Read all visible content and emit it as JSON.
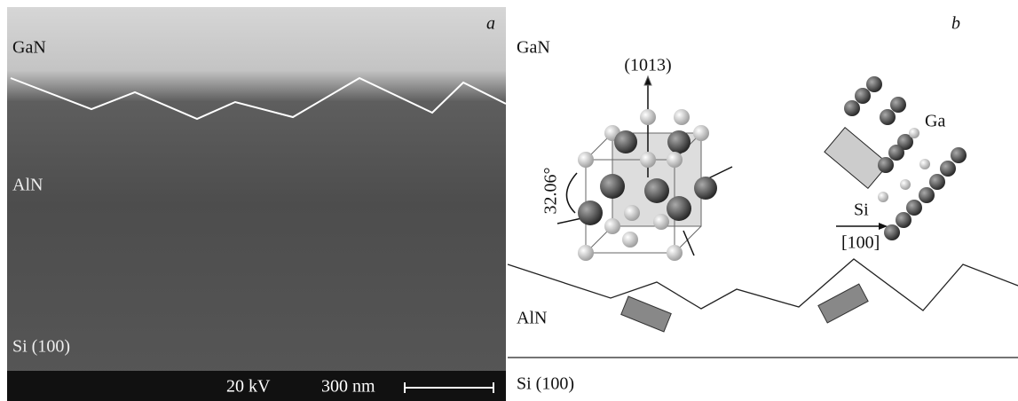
{
  "panel_a": {
    "label": "a",
    "layers": [
      "GaN",
      "AlN",
      "Si (100)"
    ],
    "voltage": "20 kV",
    "scale_bar": "300 nm"
  },
  "panel_b": {
    "label": "b",
    "layers": [
      "GaN",
      "AlN",
      "Si (100)"
    ],
    "direction": "(1013)",
    "angle": "32.06°",
    "atom": "Ga",
    "substrate": "Si",
    "substrate_direction": "[100]"
  }
}
